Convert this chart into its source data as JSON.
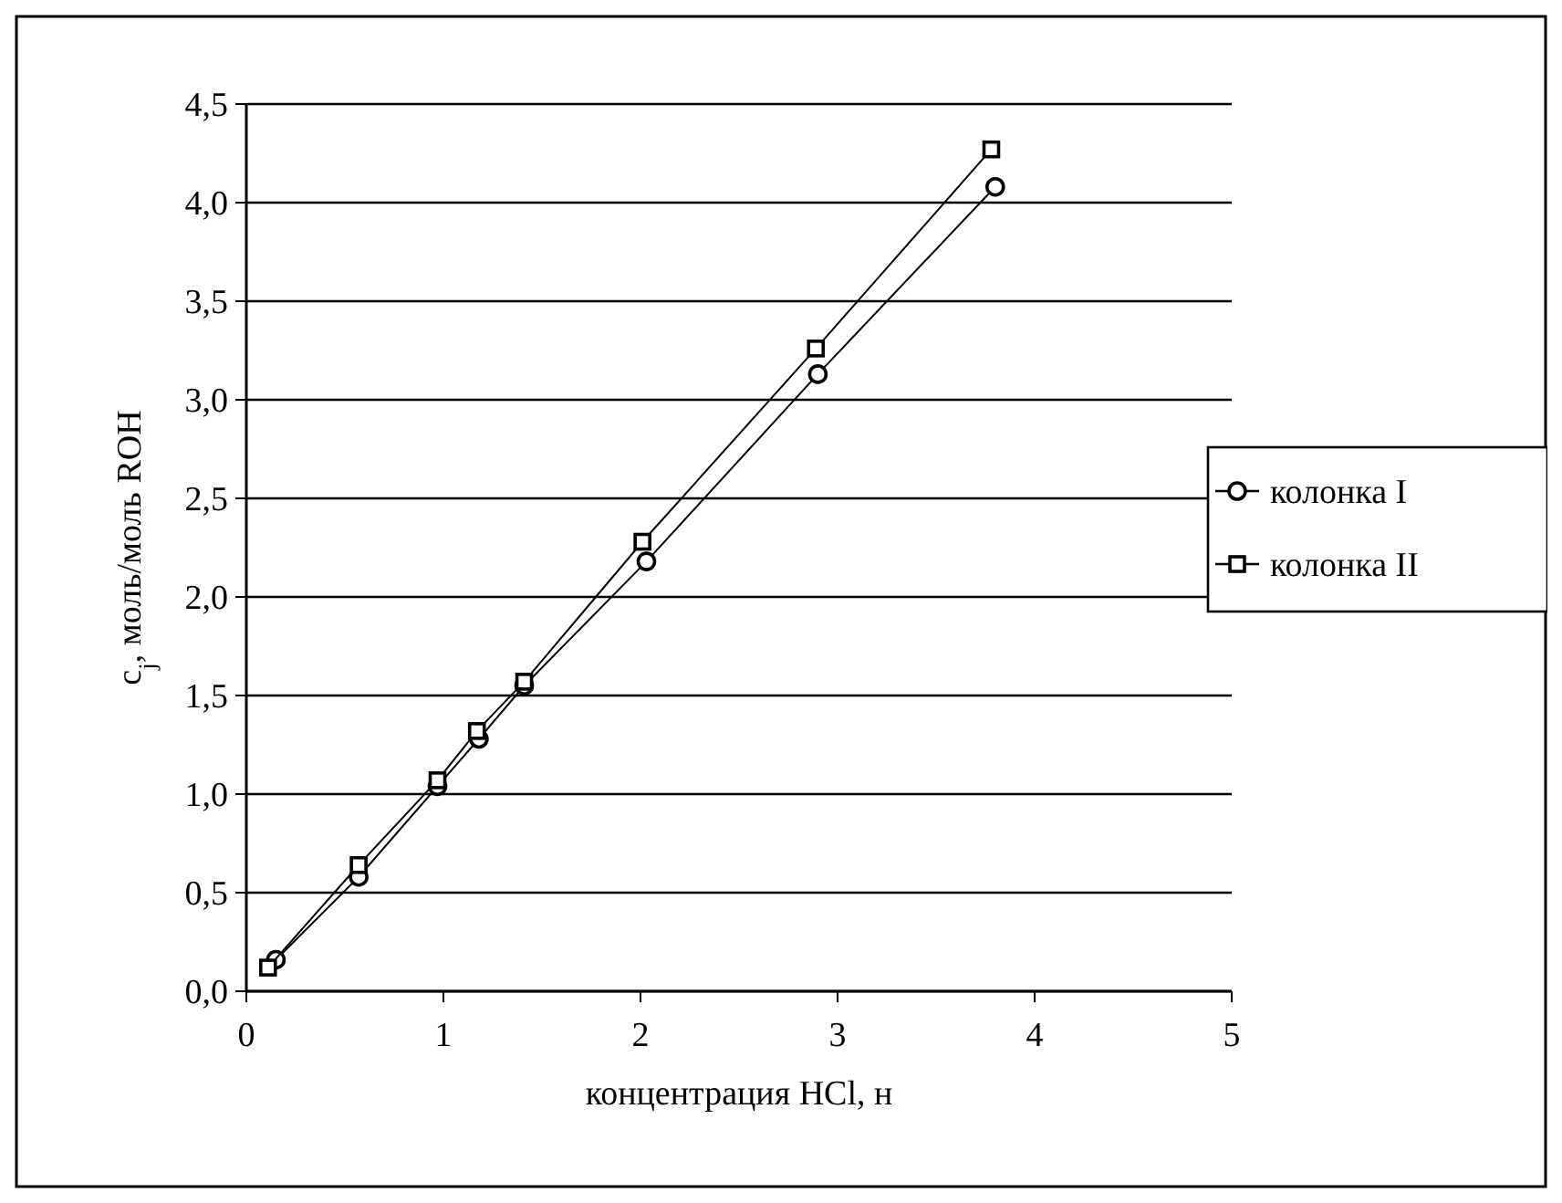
{
  "chart_data": {
    "type": "line",
    "xlabel": "концентрация HCl, н",
    "ylabel": "c$_{j}$, моль/моль ROH",
    "xlim": [
      0,
      5
    ],
    "xticks": [
      0,
      1,
      2,
      3,
      4,
      5
    ],
    "ylim": [
      0,
      4.5
    ],
    "yticks": [
      {
        "value": 0,
        "label": "0,0"
      },
      {
        "value": 0.5,
        "label": "0,5"
      },
      {
        "value": 1,
        "label": "1,0"
      },
      {
        "value": 1.5,
        "label": "1,5"
      },
      {
        "value": 2,
        "label": "2,0"
      },
      {
        "value": 2.5,
        "label": "2,5"
      },
      {
        "value": 3,
        "label": "3,0"
      },
      {
        "value": 3.5,
        "label": "3,5"
      },
      {
        "value": 4,
        "label": "4,0"
      },
      {
        "value": 4.5,
        "label": "4,5"
      }
    ],
    "grid": "y",
    "legend": "right",
    "line_style": "solid",
    "series": [
      {
        "name": "колонка I",
        "color": "#000000",
        "marker": "circle",
        "x": [
          0.15,
          0.57,
          0.97,
          1.18,
          1.41,
          2.03,
          2.9,
          3.8
        ],
        "values": [
          0.16,
          0.58,
          1.04,
          1.28,
          1.55,
          2.18,
          3.13,
          4.08
        ]
      },
      {
        "name": "колонка II",
        "color": "#000000",
        "marker": "square",
        "x": [
          0.11,
          0.57,
          0.97,
          1.17,
          1.41,
          2.01,
          2.89,
          3.78
        ],
        "values": [
          0.12,
          0.64,
          1.07,
          1.32,
          1.57,
          2.28,
          3.26,
          4.27
        ]
      }
    ]
  }
}
